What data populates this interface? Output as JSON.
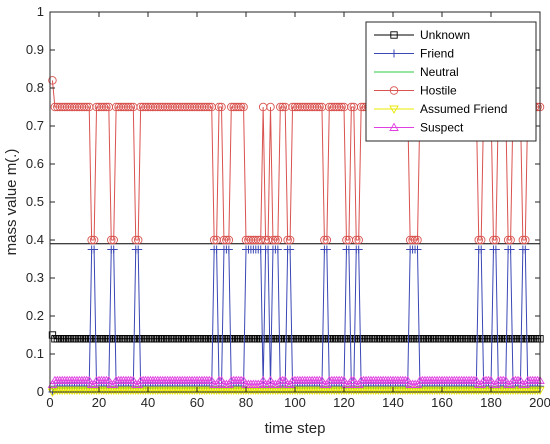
{
  "chart_data": {
    "type": "line",
    "xlabel": "time step",
    "ylabel": "mass value m(.)",
    "xlim": [
      0,
      200
    ],
    "ylim": [
      0,
      1
    ],
    "xticks": [
      "0",
      "20",
      "40",
      "60",
      "80",
      "100",
      "120",
      "140",
      "160",
      "180",
      "200"
    ],
    "yticks": [
      "0",
      "0.1",
      "0.2",
      "0.3",
      "0.4",
      "0.5",
      "0.6",
      "0.7",
      "0.8",
      "0.9",
      "1"
    ],
    "grid": false,
    "legend_position": "top-right",
    "dip_steps": [
      17,
      18,
      25,
      26,
      35,
      36,
      67,
      68,
      71,
      72,
      73,
      80,
      81,
      82,
      83,
      84,
      85,
      86,
      88,
      89,
      91,
      92,
      93,
      97,
      98,
      112,
      113,
      121,
      122,
      125,
      126,
      147,
      148,
      149,
      150,
      175,
      176,
      181,
      182,
      187,
      188,
      193,
      194
    ],
    "series": [
      {
        "name": "Unknown",
        "color": "#000000",
        "marker": "square",
        "base": 0.14,
        "dip": 0.14,
        "first": 0.15
      },
      {
        "name": "Friend",
        "color": "#3b47b5",
        "marker": "plus",
        "base": 0.015,
        "dip": 0.375,
        "first": 0.0
      },
      {
        "name": "Neutral",
        "color": "#2ecc40",
        "marker": "none",
        "base": 0.01,
        "dip": 0.01,
        "first": 0.0
      },
      {
        "name": "Hostile",
        "color": "#d9534f",
        "marker": "circle",
        "base": 0.75,
        "dip": 0.4,
        "first": 0.82
      },
      {
        "name": "Assumed Friend",
        "color": "#e8e800",
        "marker": "triangle-down",
        "base": 0.005,
        "dip": 0.005,
        "first": 0.0
      },
      {
        "name": "Suspect",
        "color": "#e040e0",
        "marker": "triangle-up",
        "base": 0.03,
        "dip": 0.02,
        "first": 0.02
      }
    ],
    "reference_line": {
      "y": 0.39,
      "color": "#000000"
    }
  }
}
